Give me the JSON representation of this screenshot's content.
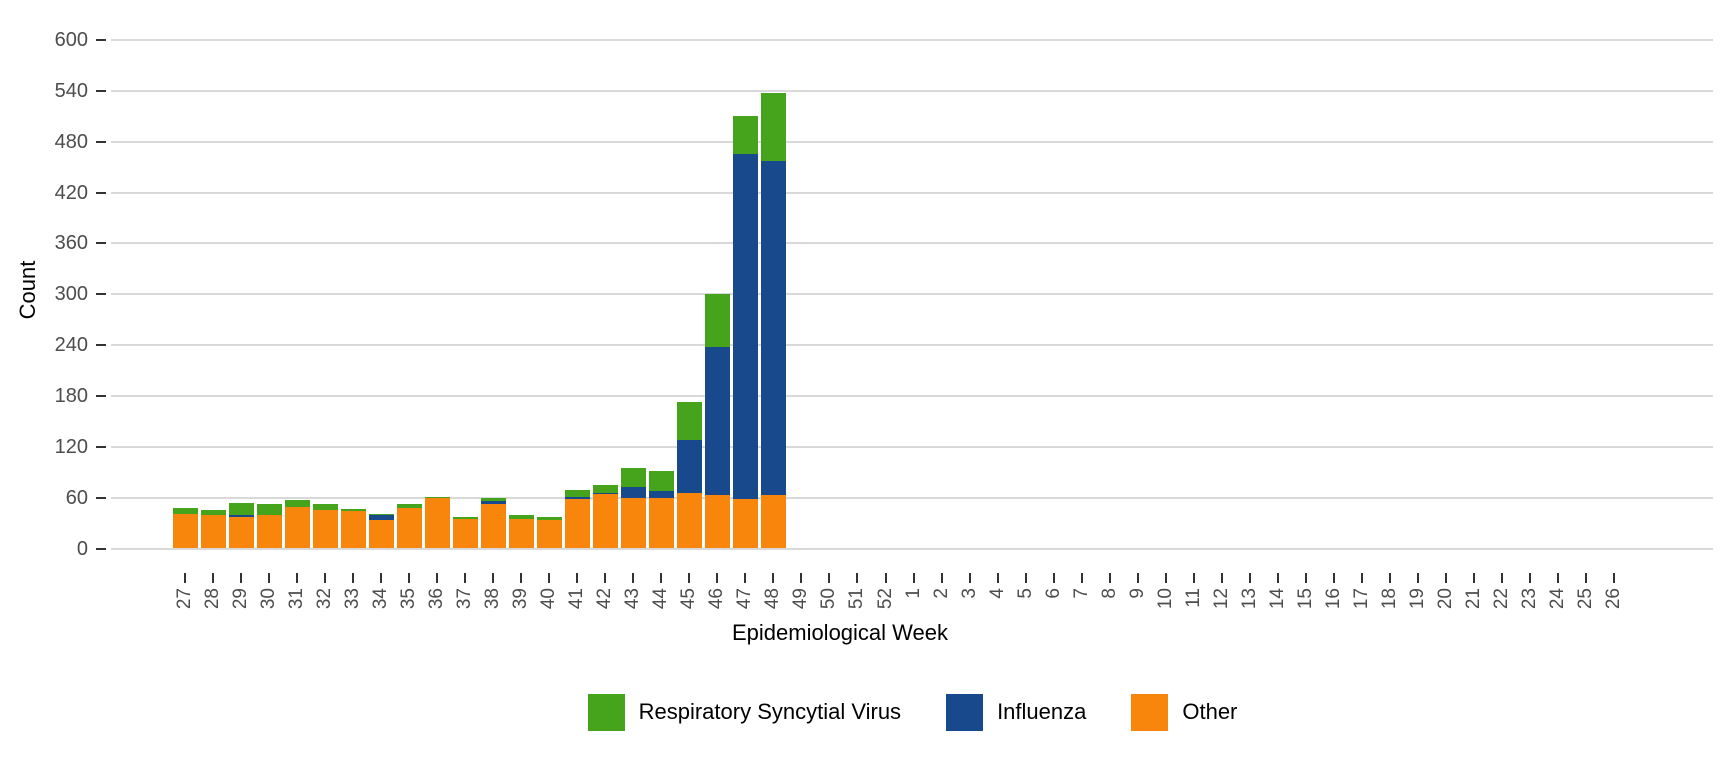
{
  "chart_data": {
    "type": "bar",
    "stacked": true,
    "title": "",
    "xlabel": "Epidemiological Week",
    "ylabel": "Count",
    "legend_position": "bottom",
    "grid": "horizontal-major",
    "ylim": [
      0,
      600
    ],
    "yticks": [
      0,
      60,
      120,
      180,
      240,
      300,
      360,
      420,
      480,
      540,
      600
    ],
    "categories": [
      "27",
      "28",
      "29",
      "30",
      "31",
      "32",
      "33",
      "34",
      "35",
      "36",
      "37",
      "38",
      "39",
      "40",
      "41",
      "42",
      "43",
      "44",
      "45",
      "46",
      "47",
      "48",
      "49",
      "50",
      "51",
      "52",
      "1",
      "2",
      "3",
      "4",
      "5",
      "6",
      "7",
      "8",
      "9",
      "10",
      "11",
      "12",
      "13",
      "14",
      "15",
      "16",
      "17",
      "18",
      "19",
      "20",
      "21",
      "22",
      "23",
      "24",
      "25",
      "26"
    ],
    "stack_order_bottom_to_top": [
      "Other",
      "Influenza",
      "Respiratory Syncytial Virus"
    ],
    "series": [
      {
        "name": "Respiratory Syncytial Virus",
        "color": "#45A41B",
        "values": [
          7,
          6,
          15,
          13,
          8,
          6,
          3,
          2,
          5,
          1,
          2,
          3,
          4,
          3,
          8,
          9,
          23,
          23,
          45,
          62,
          44,
          80,
          0,
          0,
          0,
          0,
          0,
          0,
          0,
          0,
          0,
          0,
          0,
          0,
          0,
          0,
          0,
          0,
          0,
          0,
          0,
          0,
          0,
          0,
          0,
          0,
          0,
          0,
          0,
          0,
          0,
          0
        ]
      },
      {
        "name": "Influenza",
        "color": "#17498C",
        "values": [
          0,
          0,
          2,
          0,
          0,
          0,
          0,
          5,
          0,
          0,
          0,
          4,
          0,
          0,
          3,
          2,
          13,
          9,
          62,
          175,
          408,
          394,
          0,
          0,
          0,
          0,
          0,
          0,
          0,
          0,
          0,
          0,
          0,
          0,
          0,
          0,
          0,
          0,
          0,
          0,
          0,
          0,
          0,
          0,
          0,
          0,
          0,
          0,
          0,
          0,
          0,
          0
        ]
      },
      {
        "name": "Other",
        "color": "#F8860D",
        "values": [
          41,
          39,
          37,
          40,
          49,
          46,
          44,
          34,
          48,
          60,
          35,
          52,
          35,
          34,
          58,
          64,
          59,
          59,
          66,
          63,
          58,
          63,
          0,
          0,
          0,
          0,
          0,
          0,
          0,
          0,
          0,
          0,
          0,
          0,
          0,
          0,
          0,
          0,
          0,
          0,
          0,
          0,
          0,
          0,
          0,
          0,
          0,
          0,
          0,
          0,
          0,
          0
        ]
      }
    ],
    "colors": {
      "grid": "#D9D9D9",
      "axis_text": "#4D4D4D",
      "axis_title": "#000000",
      "tick": "#333333",
      "background": "#FFFFFF"
    }
  }
}
